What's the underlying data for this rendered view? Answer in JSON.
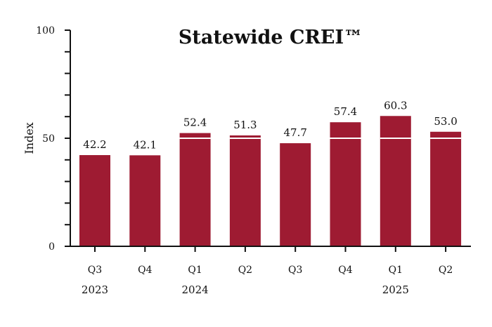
{
  "chart_data": {
    "type": "bar",
    "title": "Statewide CREI™",
    "xlabel": "",
    "ylabel": "Index",
    "ylim": [
      0,
      100
    ],
    "yticks": [
      0,
      50,
      100
    ],
    "yminor_step": 10,
    "categories": [
      "Q3",
      "Q4",
      "Q1",
      "Q2",
      "Q3",
      "Q4",
      "Q1",
      "Q2"
    ],
    "years": [
      {
        "label": "2023",
        "under": 0
      },
      {
        "label": "2024",
        "under": 2
      },
      {
        "label": "2025",
        "under": 6
      }
    ],
    "values": [
      42.2,
      42.1,
      52.4,
      51.3,
      47.7,
      57.4,
      60.3,
      53.0
    ],
    "value_labels": [
      "42.2",
      "42.1",
      "52.4",
      "51.3",
      "47.7",
      "57.4",
      "60.3",
      "53.0"
    ],
    "reference_line": 50,
    "colors": {
      "bar": "#9e1b32",
      "reference_line": "#ffffff",
      "axis": "#111111"
    },
    "grid": false,
    "legend": "none"
  }
}
